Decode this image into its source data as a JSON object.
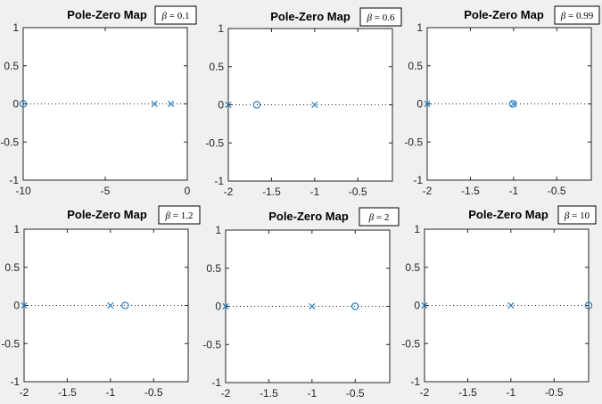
{
  "chart_data": [
    {
      "type": "scatter",
      "title": "Pole-Zero Map",
      "annotation": {
        "symbol": "β",
        "text": " = 0.1"
      },
      "xlim": [
        -10,
        0
      ],
      "ylim": [
        -1,
        1
      ],
      "xticks": [
        -10,
        -5,
        0
      ],
      "yticks": [
        -1,
        -0.5,
        0,
        0.5,
        1
      ],
      "xtick_labels": [
        "-10",
        "-5",
        "0"
      ],
      "ytick_labels": [
        "-1",
        "-0.5",
        "0",
        "0.5",
        "1"
      ],
      "poles": [
        {
          "x": -2,
          "y": 0
        },
        {
          "x": -1,
          "y": 0
        }
      ],
      "zeros": [
        {
          "x": -10,
          "y": 0
        }
      ],
      "zero_axis_dotted": true
    },
    {
      "type": "scatter",
      "title": "Pole-Zero Map",
      "annotation": {
        "symbol": "β",
        "text": " = 0.6"
      },
      "xlim": [
        -2,
        -0.1
      ],
      "ylim": [
        -1,
        1
      ],
      "xticks": [
        -2,
        -1.5,
        -1,
        -0.5
      ],
      "yticks": [
        -1,
        -0.5,
        0,
        0.5,
        1
      ],
      "xtick_labels": [
        "-2",
        "-1.5",
        "-1",
        "-0.5"
      ],
      "ytick_labels": [
        "-1",
        "-0.5",
        "0",
        "0.5",
        "1"
      ],
      "poles": [
        {
          "x": -2,
          "y": 0
        },
        {
          "x": -1,
          "y": 0
        }
      ],
      "zeros": [
        {
          "x": -1.67,
          "y": 0
        }
      ],
      "zero_axis_dotted": true
    },
    {
      "type": "scatter",
      "title": "Pole-Zero Map",
      "annotation": {
        "symbol": "β",
        "text": " = 0.99"
      },
      "xlim": [
        -2,
        -0.1
      ],
      "ylim": [
        -1,
        1
      ],
      "xticks": [
        -2,
        -1.5,
        -1,
        -0.5
      ],
      "yticks": [
        -1,
        -0.5,
        0,
        0.5,
        1
      ],
      "xtick_labels": [
        "-2",
        "-1.5",
        "-1",
        "-0.5"
      ],
      "ytick_labels": [
        "-1",
        "-0.5",
        "0",
        "0.5",
        "1"
      ],
      "poles": [
        {
          "x": -2,
          "y": 0
        },
        {
          "x": -1,
          "y": 0
        }
      ],
      "zeros": [
        {
          "x": -1.01,
          "y": 0
        }
      ],
      "zero_axis_dotted": true
    },
    {
      "type": "scatter",
      "title": "Pole-Zero Map",
      "annotation": {
        "symbol": "β",
        "text": " = 1.2"
      },
      "xlim": [
        -2,
        -0.1
      ],
      "ylim": [
        -1,
        1
      ],
      "xticks": [
        -2,
        -1.5,
        -1,
        -0.5
      ],
      "yticks": [
        -1,
        -0.5,
        0,
        0.5,
        1
      ],
      "xtick_labels": [
        "-2",
        "-1.5",
        "-1",
        "-0.5"
      ],
      "ytick_labels": [
        "-1",
        "-0.5",
        "0",
        "0.5",
        "1"
      ],
      "poles": [
        {
          "x": -2,
          "y": 0
        },
        {
          "x": -1,
          "y": 0
        }
      ],
      "zeros": [
        {
          "x": -0.83,
          "y": 0
        }
      ],
      "zero_axis_dotted": true
    },
    {
      "type": "scatter",
      "title": "Pole-Zero Map",
      "annotation": {
        "symbol": "β",
        "text": " = 2"
      },
      "xlim": [
        -2,
        -0.1
      ],
      "ylim": [
        -1,
        1
      ],
      "xticks": [
        -2,
        -1.5,
        -1,
        -0.5
      ],
      "yticks": [
        -1,
        -0.5,
        0,
        0.5,
        1
      ],
      "xtick_labels": [
        "-2",
        "-1.5",
        "-1",
        "-0.5"
      ],
      "ytick_labels": [
        "-1",
        "-0.5",
        "0",
        "0.5",
        "1"
      ],
      "poles": [
        {
          "x": -2,
          "y": 0
        },
        {
          "x": -1,
          "y": 0
        }
      ],
      "zeros": [
        {
          "x": -0.5,
          "y": 0
        }
      ],
      "zero_axis_dotted": true
    },
    {
      "type": "scatter",
      "title": "Pole-Zero Map",
      "annotation": {
        "symbol": "β",
        "text": " = 10"
      },
      "xlim": [
        -2,
        -0.1
      ],
      "ylim": [
        -1,
        1
      ],
      "xticks": [
        -2,
        -1.5,
        -1,
        -0.5
      ],
      "yticks": [
        -1,
        -0.5,
        0,
        0.5,
        1
      ],
      "xtick_labels": [
        "-2",
        "-1.5",
        "-1",
        "-0.5"
      ],
      "ytick_labels": [
        "-1",
        "-0.5",
        "0",
        "0.5",
        "1"
      ],
      "poles": [
        {
          "x": -2,
          "y": 0
        },
        {
          "x": -1,
          "y": 0
        }
      ],
      "zeros": [
        {
          "x": -0.1,
          "y": 0
        }
      ],
      "zero_axis_dotted": true
    }
  ],
  "colors": {
    "marker": "#2a7fc0",
    "axes": "#262626",
    "panel": "#ffffff",
    "figure": "#f0f0f0"
  }
}
